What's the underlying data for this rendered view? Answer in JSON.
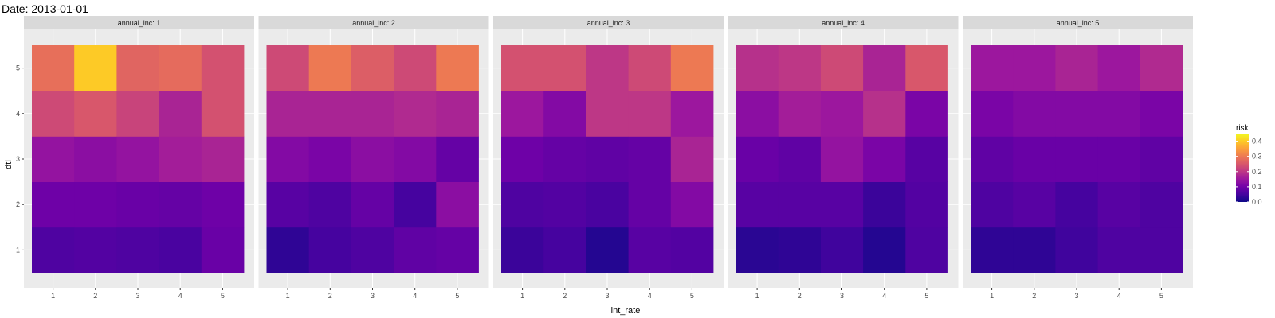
{
  "chart_data": {
    "type": "heatmap",
    "title": "Date: 2013-01-01",
    "xlabel": "int_rate",
    "ylabel": "dti",
    "facet_variable": "annual_inc",
    "x_categories": [
      "1",
      "2",
      "3",
      "4",
      "5"
    ],
    "y_categories": [
      "1",
      "2",
      "3",
      "4",
      "5"
    ],
    "legend": {
      "title": "risk",
      "ticks": [
        "0.0",
        "0.1",
        "0.2",
        "0.3",
        "0.4"
      ],
      "range": [
        0,
        0.45
      ],
      "position": "right"
    },
    "colors": {
      "stops": [
        "#0d0887",
        "#46039f",
        "#7201a8",
        "#9c179e",
        "#bd3786",
        "#d8576b",
        "#ed7953",
        "#fb9f3a",
        "#fdca26",
        "#f0f921"
      ],
      "panel_bg": "#ebebeb",
      "strip_bg": "#d9d9d9",
      "grid": "#ffffff"
    },
    "facets": [
      {
        "strip": "annual_inc: 1",
        "values": [
          [
            0.06,
            0.095,
            0.14,
            0.23,
            0.285
          ],
          [
            0.065,
            0.095,
            0.13,
            0.25,
            0.4
          ],
          [
            0.06,
            0.09,
            0.14,
            0.22,
            0.27
          ],
          [
            0.055,
            0.085,
            0.16,
            0.17,
            0.28
          ],
          [
            0.09,
            0.095,
            0.17,
            0.24,
            0.24
          ]
        ]
      },
      {
        "strip": "annual_inc: 2",
        "values": [
          [
            0.03,
            0.07,
            0.12,
            0.17,
            0.23
          ],
          [
            0.05,
            0.06,
            0.11,
            0.17,
            0.3
          ],
          [
            0.06,
            0.085,
            0.13,
            0.17,
            0.26
          ],
          [
            0.08,
            0.05,
            0.12,
            0.18,
            0.23
          ],
          [
            0.085,
            0.13,
            0.085,
            0.17,
            0.3
          ]
        ]
      },
      {
        "strip": "annual_inc: 3",
        "values": [
          [
            0.04,
            0.06,
            0.095,
            0.15,
            0.24
          ],
          [
            0.05,
            0.065,
            0.085,
            0.12,
            0.24
          ],
          [
            0.02,
            0.055,
            0.08,
            0.2,
            0.2
          ],
          [
            0.07,
            0.085,
            0.085,
            0.2,
            0.23
          ],
          [
            0.065,
            0.12,
            0.17,
            0.15,
            0.3
          ]
        ]
      },
      {
        "strip": "annual_inc: 4",
        "values": [
          [
            0.025,
            0.07,
            0.09,
            0.13,
            0.19
          ],
          [
            0.03,
            0.07,
            0.08,
            0.16,
            0.2
          ],
          [
            0.045,
            0.07,
            0.14,
            0.15,
            0.23
          ],
          [
            0.02,
            0.04,
            0.11,
            0.19,
            0.17
          ],
          [
            0.06,
            0.065,
            0.07,
            0.11,
            0.25
          ]
        ]
      },
      {
        "strip": "annual_inc: 5",
        "values": [
          [
            0.03,
            0.06,
            0.08,
            0.11,
            0.15
          ],
          [
            0.03,
            0.07,
            0.09,
            0.12,
            0.15
          ],
          [
            0.045,
            0.05,
            0.09,
            0.12,
            0.17
          ],
          [
            0.06,
            0.07,
            0.09,
            0.12,
            0.15
          ],
          [
            0.06,
            0.06,
            0.08,
            0.11,
            0.18
          ]
        ]
      }
    ]
  }
}
